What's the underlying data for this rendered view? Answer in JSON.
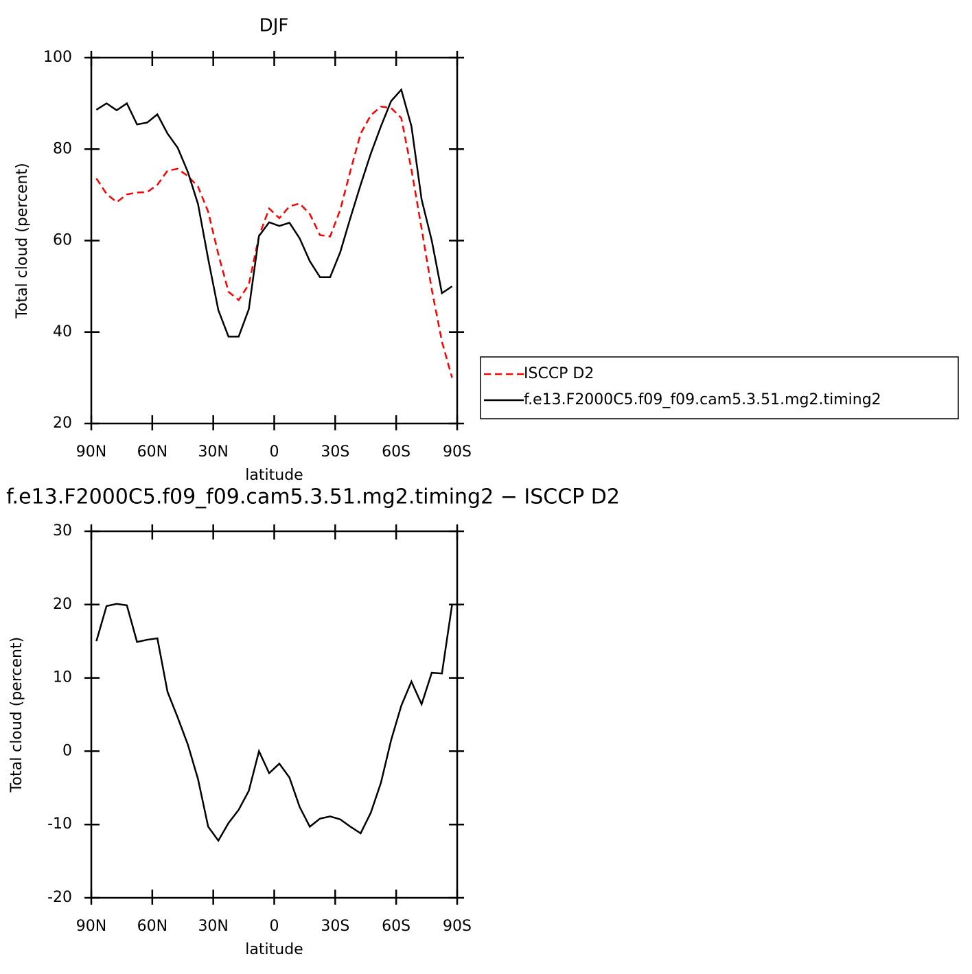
{
  "chart_data": [
    {
      "type": "line",
      "title": "DJF",
      "xlabel": "latitude",
      "ylabel": "Total cloud (percent)",
      "x": [
        87.5,
        82.5,
        77.5,
        72.5,
        67.5,
        62.5,
        57.5,
        52.5,
        47.5,
        42.5,
        37.5,
        32.5,
        27.5,
        22.5,
        17.5,
        12.5,
        7.5,
        2.5,
        -2.5,
        -7.5,
        -12.5,
        -17.5,
        -22.5,
        -27.5,
        -32.5,
        -37.5,
        -42.5,
        -47.5,
        -52.5,
        -57.5,
        -62.5,
        -67.5,
        -72.5,
        -77.5,
        -82.5,
        -87.5
      ],
      "series": [
        {
          "name": "ISCCP D2",
          "color": "#ff0000",
          "linestyle": "dashed",
          "values": [
            73.6,
            70.2,
            68.4,
            70.1,
            70.5,
            70.6,
            72.2,
            75.3,
            75.7,
            74.1,
            71.8,
            66.3,
            57,
            48.8,
            47,
            50.4,
            61,
            67,
            64.9,
            67.5,
            68.1,
            65.8,
            61.2,
            60.9,
            66.8,
            75.3,
            83.4,
            87.4,
            89.3,
            89.0,
            86.8,
            75.5,
            62.6,
            49.3,
            37.9,
            30
          ]
        },
        {
          "name": "f.e13.F2000C5.f09_f09.cam5.3.51.mg2.timing2",
          "color": "#000000",
          "linestyle": "solid",
          "values": [
            88.6,
            90,
            88.5,
            90,
            85.4,
            85.8,
            87.6,
            83.4,
            80.3,
            75,
            68,
            56,
            44.8,
            39,
            39,
            45,
            61,
            64,
            63.2,
            63.9,
            60.5,
            55.5,
            52,
            52,
            57.5,
            65,
            72.2,
            79,
            85,
            90.5,
            93,
            85,
            69,
            60,
            48.5,
            50
          ]
        }
      ],
      "xlim": [
        90,
        -90
      ],
      "xticks": [
        {
          "value": 90,
          "label": "90N"
        },
        {
          "value": 60,
          "label": "60N"
        },
        {
          "value": 30,
          "label": "30N"
        },
        0,
        {
          "value": -30,
          "label": "30S"
        },
        {
          "value": -60,
          "label": "60S"
        },
        {
          "value": -90,
          "label": "90S"
        }
      ],
      "ylim": [
        20,
        100
      ],
      "yticks": [
        20,
        40,
        60,
        80,
        100
      ],
      "legend": "right"
    },
    {
      "type": "line",
      "title": "f.e13.F2000C5.f09_f09.cam5.3.51.mg2.timing2 − ISCCP D2",
      "xlabel": "latitude",
      "ylabel": "Total cloud (percent)",
      "x": [
        87.5,
        82.5,
        77.5,
        72.5,
        67.5,
        62.5,
        57.5,
        52.5,
        47.5,
        42.5,
        37.5,
        32.5,
        27.5,
        22.5,
        17.5,
        12.5,
        7.5,
        2.5,
        -2.5,
        -7.5,
        -12.5,
        -17.5,
        -22.5,
        -27.5,
        -32.5,
        -37.5,
        -42.5,
        -47.5,
        -52.5,
        -57.5,
        -62.5,
        -67.5,
        -72.5,
        -77.5,
        -82.5,
        -87.5
      ],
      "values": [
        15.0,
        19.8,
        20.1,
        19.9,
        14.9,
        15.2,
        15.4,
        8.1,
        4.6,
        0.9,
        -3.8,
        -10.3,
        -12.2,
        -9.8,
        -8,
        -5.4,
        0,
        -3,
        -1.7,
        -3.6,
        -7.6,
        -10.3,
        -9.2,
        -8.9,
        -9.3,
        -10.3,
        -11.2,
        -8.4,
        -4.3,
        1.5,
        6.2,
        9.5,
        6.4,
        10.7,
        10.6,
        20
      ],
      "color": "#000000",
      "xlim": [
        90,
        -90
      ],
      "xticks": [
        {
          "value": 90,
          "label": "90N"
        },
        {
          "value": 60,
          "label": "60N"
        },
        {
          "value": 30,
          "label": "30N"
        },
        0,
        {
          "value": -30,
          "label": "30S"
        },
        {
          "value": -60,
          "label": "60S"
        },
        {
          "value": -90,
          "label": "90S"
        }
      ],
      "ylim": [
        -20,
        30
      ],
      "yticks": [
        -20,
        -10,
        0,
        10,
        20,
        30
      ]
    }
  ]
}
